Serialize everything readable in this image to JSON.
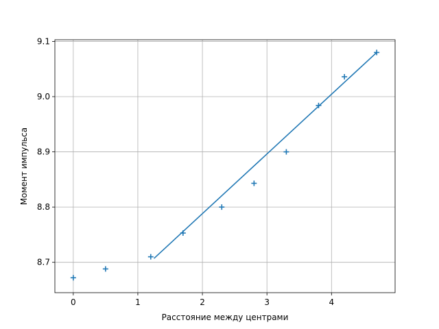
{
  "chart_data": {
    "type": "scatter",
    "title": "",
    "xlabel": "Расстояние между центрами",
    "ylabel": "Момент импульса",
    "xlim": [
      -0.285,
      4.985
    ],
    "ylim": [
      8.645,
      9.103
    ],
    "grid": true,
    "xticks": [
      0,
      1,
      2,
      3,
      4
    ],
    "xtick_labels": [
      "0",
      "1",
      "2",
      "3",
      "4"
    ],
    "yticks": [
      8.7,
      8.8,
      8.9,
      9.0,
      9.1
    ],
    "ytick_labels": [
      "8.7",
      "8.8",
      "8.9",
      "9.0",
      "9.1"
    ],
    "series": [
      {
        "kind": "scatter",
        "marker": "+",
        "color": "#1f77b4",
        "points": [
          {
            "x": 0.0,
            "y": 8.672
          },
          {
            "x": 0.5,
            "y": 8.688
          },
          {
            "x": 1.2,
            "y": 8.71
          },
          {
            "x": 1.7,
            "y": 8.753
          },
          {
            "x": 2.3,
            "y": 8.8
          },
          {
            "x": 2.8,
            "y": 8.843
          },
          {
            "x": 3.3,
            "y": 8.9
          },
          {
            "x": 3.8,
            "y": 8.984
          },
          {
            "x": 4.2,
            "y": 9.036
          },
          {
            "x": 4.7,
            "y": 9.08
          }
        ]
      },
      {
        "kind": "line",
        "color": "#1f77b4",
        "points": [
          {
            "x": 1.25,
            "y": 8.707
          },
          {
            "x": 4.7,
            "y": 9.08
          }
        ]
      }
    ]
  }
}
